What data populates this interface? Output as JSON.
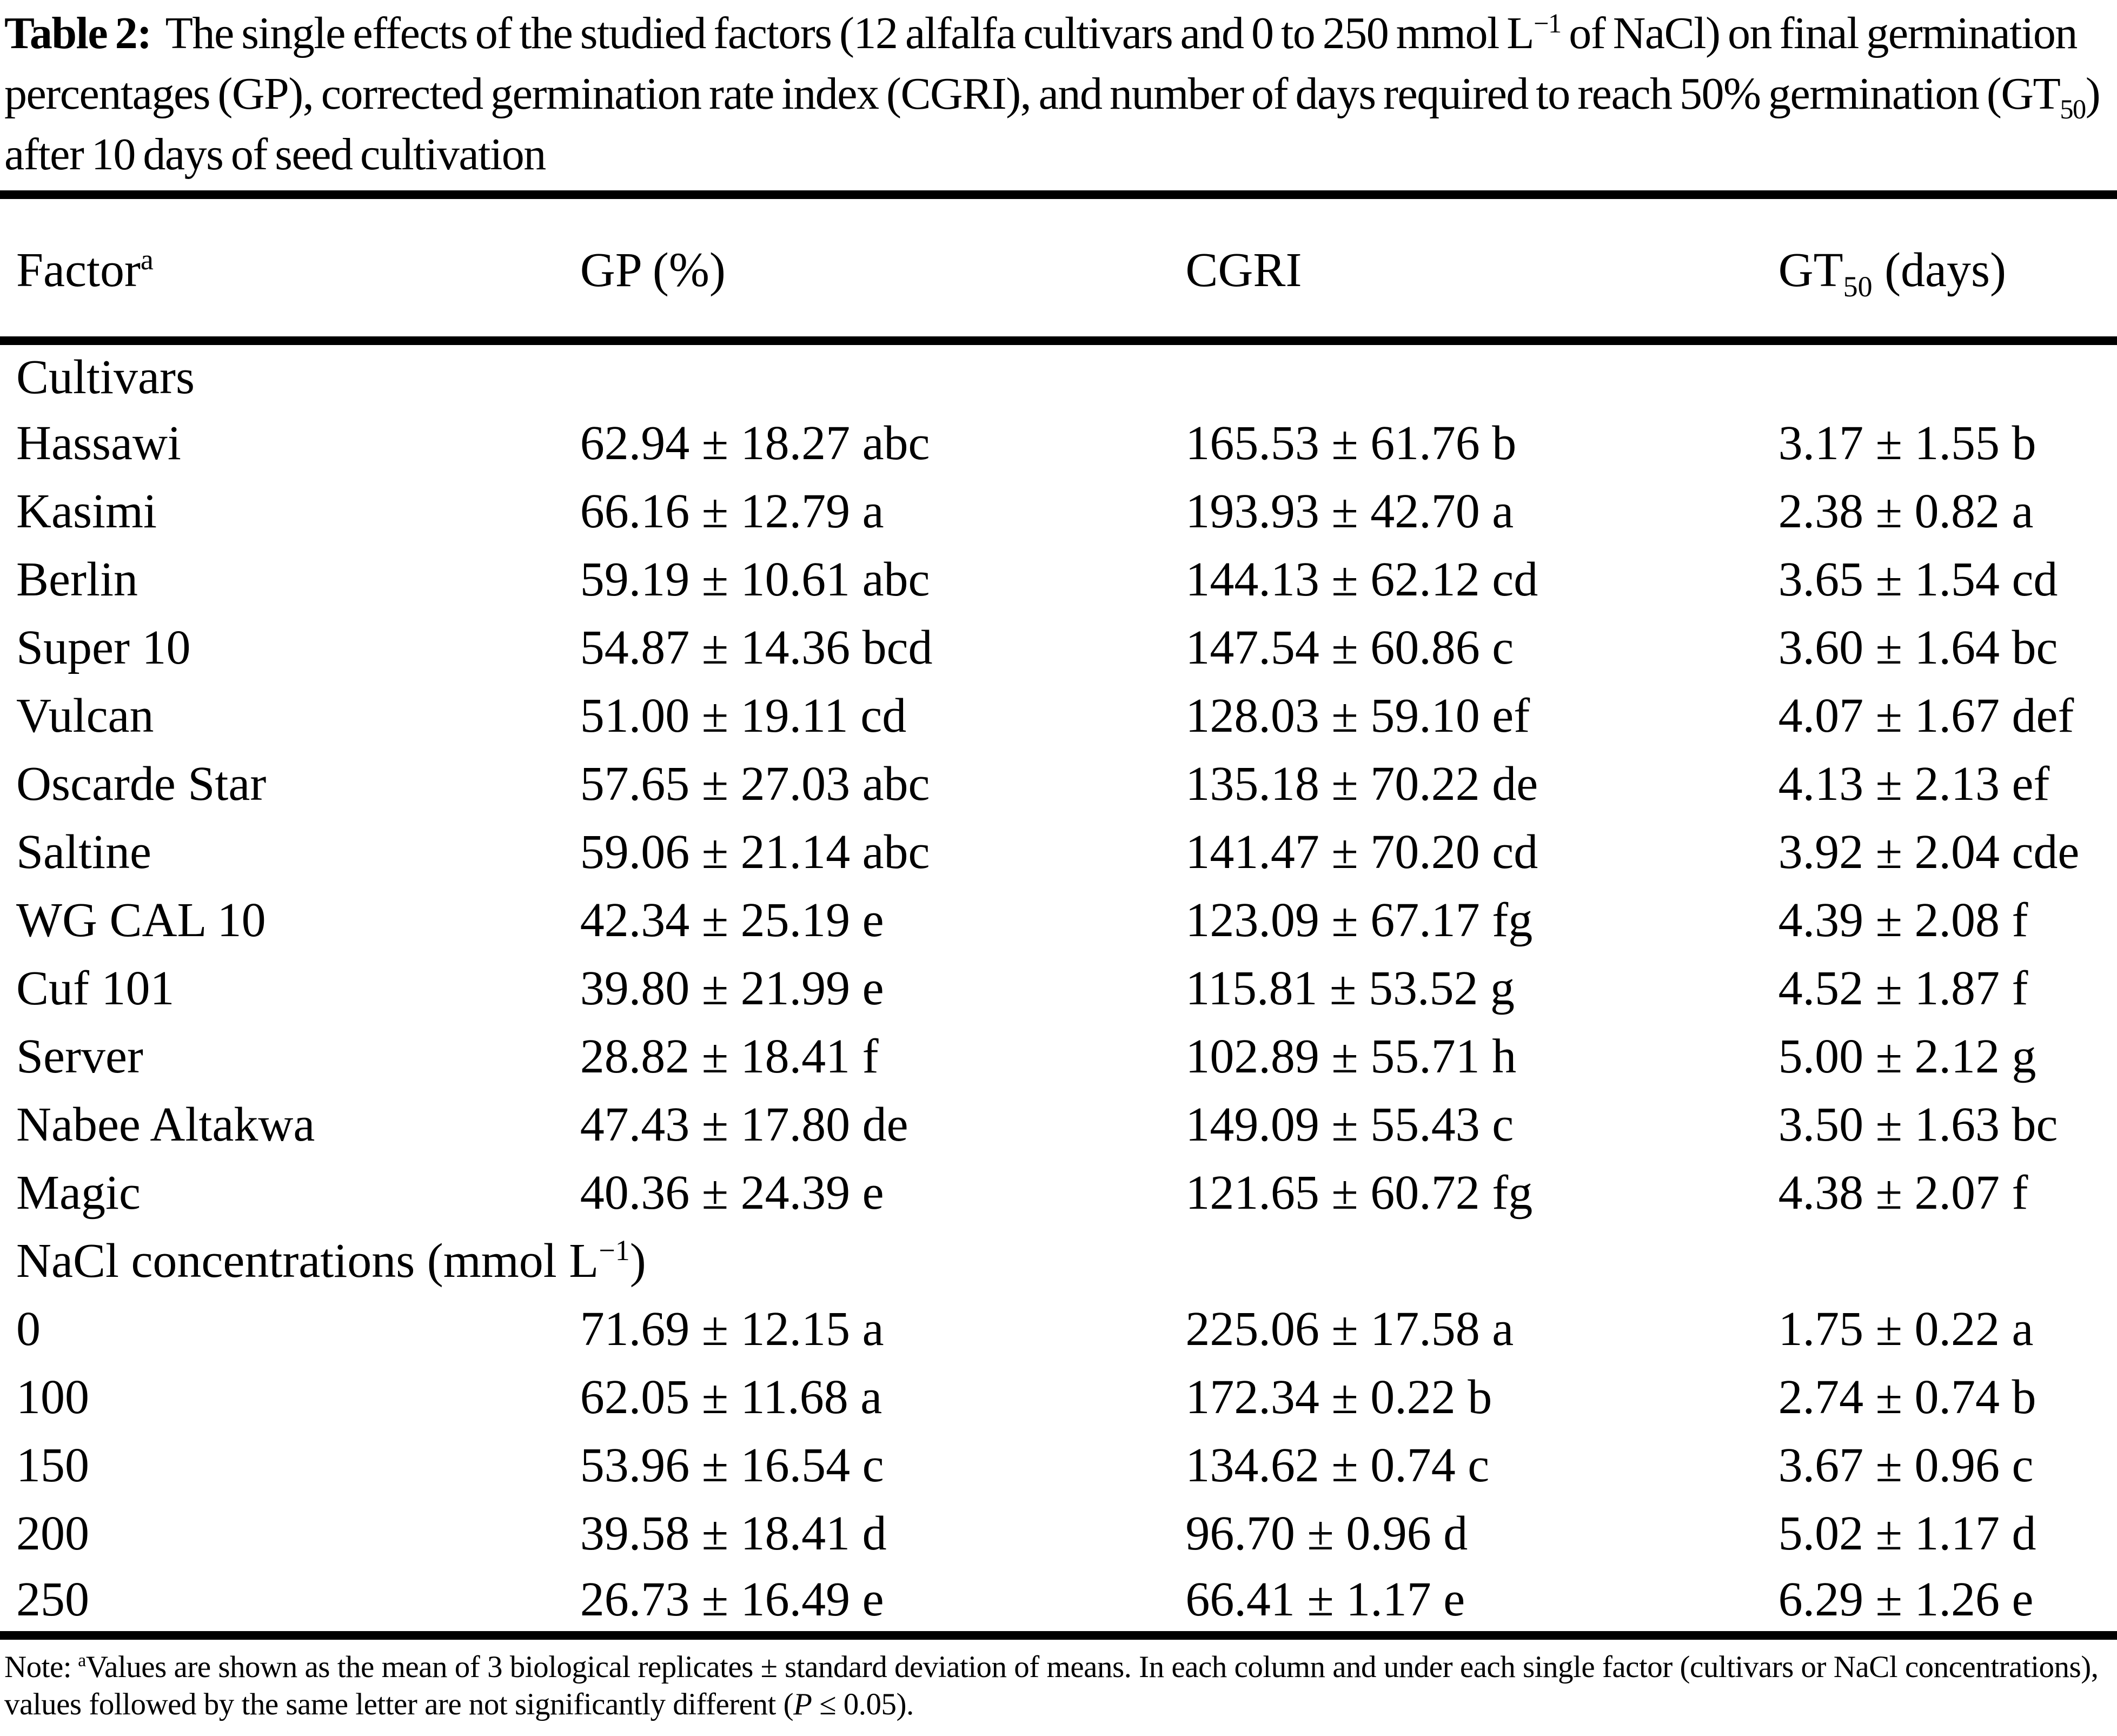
{
  "caption": {
    "label": "Table 2:",
    "before_sup": "The single effects of the studied factors (12 alfalfa cultivars and 0 to 250 mmol L",
    "sup": "−1",
    "after_sup": " of NaCl) on final germination percentages (GP), corrected germination rate index (CGRI), and number of days required to reach 50% germination (GT",
    "sub": "50",
    "after_sub": ") after 10 days of seed cultivation"
  },
  "table": {
    "headers": {
      "factor": "Factor",
      "factor_sup": "a",
      "gp": "GP (%)",
      "cgri": "CGRI",
      "gt_prefix": "GT",
      "gt_sub": "50",
      "gt_suffix": " (days)"
    },
    "rows": [
      {
        "type": "section",
        "label": "Cultivars"
      },
      {
        "type": "data",
        "factor": "Hassawi",
        "gp": "62.94 ± 18.27 abc",
        "cgri": "165.53 ± 61.76 b",
        "gt50": "3.17 ± 1.55 b"
      },
      {
        "type": "data",
        "factor": "Kasimi",
        "gp": "66.16 ± 12.79 a",
        "cgri": "193.93 ± 42.70 a",
        "gt50": "2.38 ± 0.82 a"
      },
      {
        "type": "data",
        "factor": "Berlin",
        "gp": "59.19 ± 10.61 abc",
        "cgri": "144.13 ± 62.12 cd",
        "gt50": "3.65 ± 1.54 cd"
      },
      {
        "type": "data",
        "factor": "Super 10",
        "gp": "54.87 ± 14.36 bcd",
        "cgri": "147.54 ± 60.86 c",
        "gt50": "3.60 ± 1.64 bc"
      },
      {
        "type": "data",
        "factor": "Vulcan",
        "gp": "51.00 ± 19.11 cd",
        "cgri": "128.03 ± 59.10 ef",
        "gt50": "4.07 ± 1.67 def"
      },
      {
        "type": "data",
        "factor": "Oscarde Star",
        "gp": "57.65 ± 27.03 abc",
        "cgri": "135.18 ± 70.22 de",
        "gt50": "4.13 ± 2.13 ef"
      },
      {
        "type": "data",
        "factor": "Saltine",
        "gp": "59.06 ± 21.14 abc",
        "cgri": "141.47 ± 70.20 cd",
        "gt50": "3.92 ± 2.04 cde"
      },
      {
        "type": "data",
        "factor": "WG CAL 10",
        "gp": "42.34 ± 25.19 e",
        "cgri": "123.09 ± 67.17 fg",
        "gt50": "4.39 ± 2.08 f"
      },
      {
        "type": "data",
        "factor": "Cuf 101",
        "gp": "39.80 ± 21.99 e",
        "cgri": "115.81 ± 53.52 g",
        "gt50": "4.52 ± 1.87 f"
      },
      {
        "type": "data",
        "factor": "Server",
        "gp": "28.82 ± 18.41 f",
        "cgri": "102.89 ± 55.71 h",
        "gt50": "5.00 ± 2.12 g"
      },
      {
        "type": "data",
        "factor": "Nabee Altakwa",
        "gp": "47.43 ± 17.80 de",
        "cgri": "149.09 ± 55.43 c",
        "gt50": "3.50 ± 1.63 bc"
      },
      {
        "type": "data",
        "factor": "Magic",
        "gp": "40.36 ± 24.39 e",
        "cgri": "121.65 ± 60.72 fg",
        "gt50": "4.38 ± 2.07 f"
      },
      {
        "type": "section",
        "label": "NaCl concentrations (mmol L",
        "label_sup": "−1",
        "label_end": ")"
      },
      {
        "type": "data",
        "factor": "0",
        "gp": "71.69 ± 12.15 a",
        "cgri": "225.06 ± 17.58 a",
        "gt50": "1.75 ± 0.22 a"
      },
      {
        "type": "data",
        "factor": "100",
        "gp": "62.05 ± 11.68 a",
        "cgri": "172.34 ± 0.22 b",
        "gt50": "2.74 ± 0.74 b"
      },
      {
        "type": "data",
        "factor": "150",
        "gp": "53.96 ± 16.54 c",
        "cgri": "134.62 ± 0.74 c",
        "gt50": "3.67 ± 0.96 c"
      },
      {
        "type": "data",
        "factor": "200",
        "gp": "39.58 ± 18.41 d",
        "cgri": "96.70 ± 0.96 d",
        "gt50": "5.02 ± 1.17 d"
      },
      {
        "type": "data",
        "factor": "250",
        "gp": "26.73 ± 16.49 e",
        "cgri": "66.41 ± 1.17 e",
        "gt50": "6.29 ± 1.26 e"
      }
    ]
  },
  "footnote": {
    "label": "Note:",
    "sup": "a",
    "before_p": "Values are shown as the mean of 3 biological replicates ± standard deviation of means. In each column and under each single factor (cultivars or NaCl concentrations), values followed by the same letter are not significantly different (",
    "p_italic": "P",
    "after_p": " ≤ 0.05)."
  },
  "colors": {
    "text": "#000000",
    "background": "#ffffff",
    "rule": "#000000"
  }
}
